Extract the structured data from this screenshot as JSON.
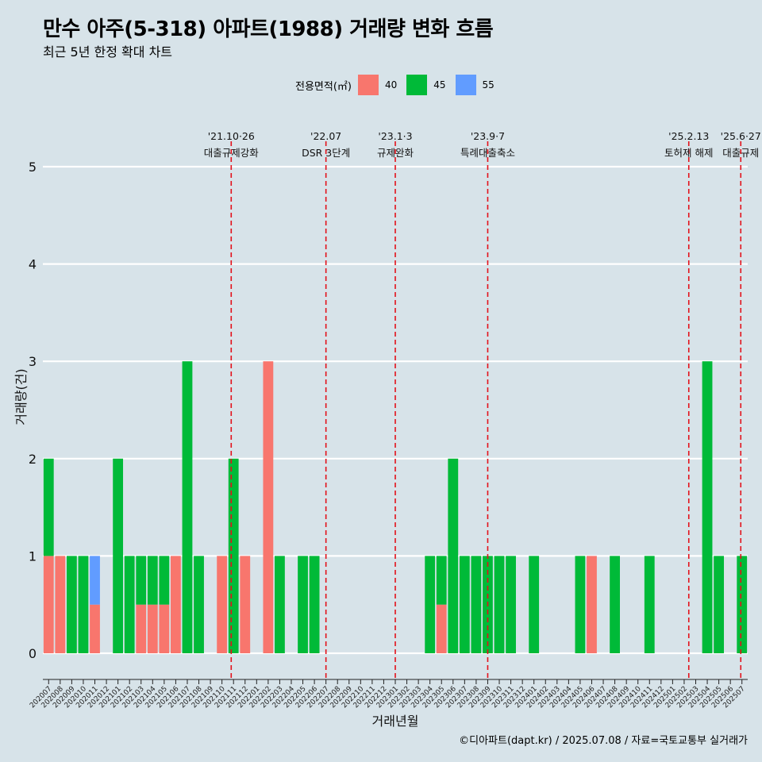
{
  "title": "만수 아주(5-318) 아파트(1988) 거래량 변화 흐름",
  "subtitle": "최근 5년 한정 확대 차트",
  "legend": {
    "title": "전용면적(㎡)",
    "items": [
      {
        "label": "40",
        "color": "#F8766D"
      },
      {
        "label": "45",
        "color": "#00BA38"
      },
      {
        "label": "55",
        "color": "#619CFF"
      }
    ]
  },
  "caption": "©디아파트(dapt.kr) / 2025.07.08 / 자료=국토교통부 실거래가",
  "chart_data": {
    "type": "bar",
    "stacked": true,
    "xlabel": "거래년월",
    "ylabel": "거래량(건)",
    "ylim": [
      0,
      5
    ],
    "yticks": [
      0,
      1,
      2,
      3,
      4,
      5
    ],
    "grid": "horizontal major lines only",
    "legend_position": "top",
    "categories": [
      "202007",
      "202008",
      "202009",
      "202010",
      "202011",
      "202012",
      "202101",
      "202102",
      "202103",
      "202104",
      "202105",
      "202106",
      "202107",
      "202108",
      "202109",
      "202110",
      "202111",
      "202112",
      "202201",
      "202202",
      "202203",
      "202204",
      "202205",
      "202206",
      "202207",
      "202208",
      "202209",
      "202210",
      "202211",
      "202212",
      "202301",
      "202302",
      "202303",
      "202304",
      "202305",
      "202306",
      "202307",
      "202308",
      "202309",
      "202310",
      "202311",
      "202312",
      "202401",
      "202402",
      "202403",
      "202404",
      "202405",
      "202406",
      "202407",
      "202408",
      "202409",
      "202410",
      "202411",
      "202412",
      "202501",
      "202502",
      "202503",
      "202504",
      "202505",
      "202506",
      "202507"
    ],
    "series": [
      {
        "name": "40",
        "color": "#F8766D",
        "values": [
          1,
          1,
          0,
          0,
          0.5,
          0,
          0,
          0,
          0.5,
          0.5,
          0.5,
          1,
          0,
          0,
          0,
          1,
          0,
          1,
          0,
          3,
          0,
          0,
          0,
          0,
          0,
          0,
          0,
          0,
          0,
          0,
          0,
          0,
          0,
          0,
          0.5,
          0,
          0,
          0,
          0,
          0,
          0,
          0,
          0,
          0,
          0,
          0,
          0,
          1,
          0,
          0,
          0,
          0,
          0,
          0,
          0,
          0,
          0,
          0,
          0,
          0,
          0
        ]
      },
      {
        "name": "45",
        "color": "#00BA38",
        "values": [
          1,
          0,
          1,
          1,
          0,
          0,
          2,
          1,
          0.5,
          0.5,
          0.5,
          0,
          3,
          1,
          0,
          0,
          2,
          0,
          0,
          0,
          1,
          0,
          1,
          1,
          0,
          0,
          0,
          0,
          0,
          0,
          0,
          0,
          0,
          1,
          0.5,
          2,
          1,
          1,
          1,
          1,
          1,
          0,
          1,
          0,
          0,
          0,
          1,
          0,
          0,
          1,
          0,
          0,
          1,
          0,
          0,
          0,
          0,
          3,
          1,
          0,
          1
        ]
      },
      {
        "name": "55",
        "color": "#619CFF",
        "values": [
          0,
          0,
          0,
          0,
          0.5,
          0,
          0,
          0,
          0,
          0,
          0,
          0,
          0,
          0,
          0,
          0,
          0,
          0,
          0,
          0,
          0,
          0,
          0,
          0,
          0,
          0,
          0,
          0,
          0,
          0,
          0,
          0,
          0,
          0,
          0,
          0,
          0,
          0,
          0,
          0,
          0,
          0,
          0,
          0,
          0,
          0,
          0,
          0,
          0,
          0,
          0,
          0,
          0,
          0,
          0,
          0,
          0,
          0,
          0,
          0,
          0
        ]
      }
    ],
    "events": [
      {
        "date": "'21.10·26",
        "label": "대출규제강화",
        "x": "202110.8"
      },
      {
        "date": "'22.07",
        "label": "DSR 3단계",
        "x": "202207"
      },
      {
        "date": "'23.1·3",
        "label": "규제완화",
        "x": "202301"
      },
      {
        "date": "'23.9·7",
        "label": "특례대출축소",
        "x": "202309"
      },
      {
        "date": "'25.2.13",
        "label": "토허제 해제",
        "x": "202502.4"
      },
      {
        "date": "'25.6·27",
        "label": "대출규제",
        "x": "202506.9"
      }
    ]
  }
}
